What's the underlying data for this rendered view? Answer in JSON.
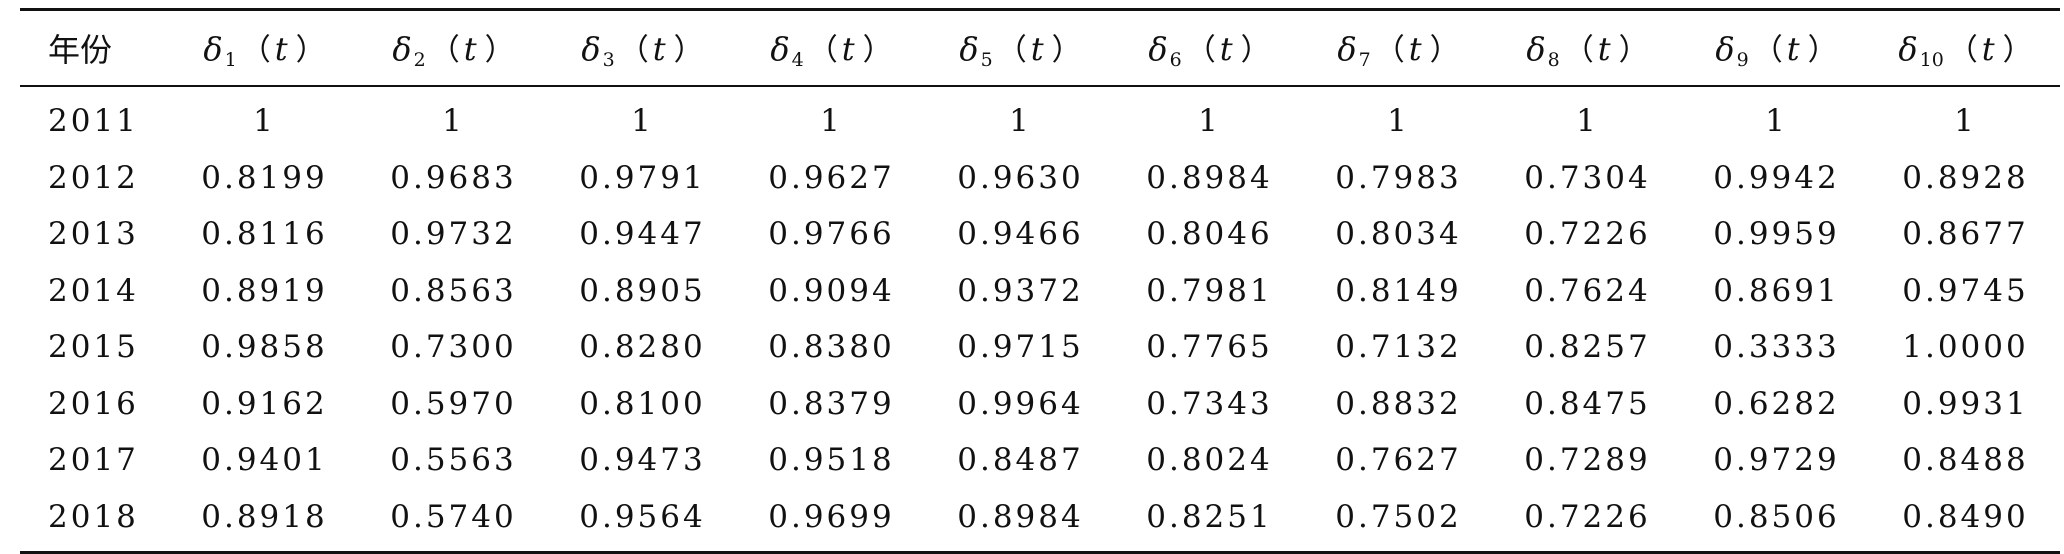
{
  "table": {
    "header": {
      "first": "年份",
      "columns": [
        {
          "symbol": "δ",
          "sub": "1",
          "open": "（",
          "var": "t",
          "close": "）"
        },
        {
          "symbol": "δ",
          "sub": "2",
          "open": "（",
          "var": "t",
          "close": "）"
        },
        {
          "symbol": "δ",
          "sub": "3",
          "open": "（",
          "var": "t",
          "close": "）"
        },
        {
          "symbol": "δ",
          "sub": "4",
          "open": "（",
          "var": "t",
          "close": "）"
        },
        {
          "symbol": "δ",
          "sub": "5",
          "open": "（",
          "var": "t",
          "close": "）"
        },
        {
          "symbol": "δ",
          "sub": "6",
          "open": "（",
          "var": "t",
          "close": "）"
        },
        {
          "symbol": "δ",
          "sub": "7",
          "open": "（",
          "var": "t",
          "close": "）"
        },
        {
          "symbol": "δ",
          "sub": "8",
          "open": "（",
          "var": "t",
          "close": "）"
        },
        {
          "symbol": "δ",
          "sub": "9",
          "open": "（",
          "var": "t",
          "close": "）"
        },
        {
          "symbol": "δ",
          "sub": "10",
          "open": "（",
          "var": "t",
          "close": "）"
        }
      ]
    },
    "rows": [
      {
        "year": "2011",
        "values": [
          "1",
          "1",
          "1",
          "1",
          "1",
          "1",
          "1",
          "1",
          "1",
          "1"
        ]
      },
      {
        "year": "2012",
        "values": [
          "0.8199",
          "0.9683",
          "0.9791",
          "0.9627",
          "0.9630",
          "0.8984",
          "0.7983",
          "0.7304",
          "0.9942",
          "0.8928"
        ]
      },
      {
        "year": "2013",
        "values": [
          "0.8116",
          "0.9732",
          "0.9447",
          "0.9766",
          "0.9466",
          "0.8046",
          "0.8034",
          "0.7226",
          "0.9959",
          "0.8677"
        ]
      },
      {
        "year": "2014",
        "values": [
          "0.8919",
          "0.8563",
          "0.8905",
          "0.9094",
          "0.9372",
          "0.7981",
          "0.8149",
          "0.7624",
          "0.8691",
          "0.9745"
        ]
      },
      {
        "year": "2015",
        "values": [
          "0.9858",
          "0.7300",
          "0.8280",
          "0.8380",
          "0.9715",
          "0.7765",
          "0.7132",
          "0.8257",
          "0.3333",
          "1.0000"
        ]
      },
      {
        "year": "2016",
        "values": [
          "0.9162",
          "0.5970",
          "0.8100",
          "0.8379",
          "0.9964",
          "0.7343",
          "0.8832",
          "0.8475",
          "0.6282",
          "0.9931"
        ]
      },
      {
        "year": "2017",
        "values": [
          "0.9401",
          "0.5563",
          "0.9473",
          "0.9518",
          "0.8487",
          "0.8024",
          "0.7627",
          "0.7289",
          "0.9729",
          "0.8488"
        ]
      },
      {
        "year": "2018",
        "values": [
          "0.8918",
          "0.5740",
          "0.9564",
          "0.9699",
          "0.8984",
          "0.8251",
          "0.7502",
          "0.7226",
          "0.8506",
          "0.8490"
        ]
      }
    ]
  }
}
